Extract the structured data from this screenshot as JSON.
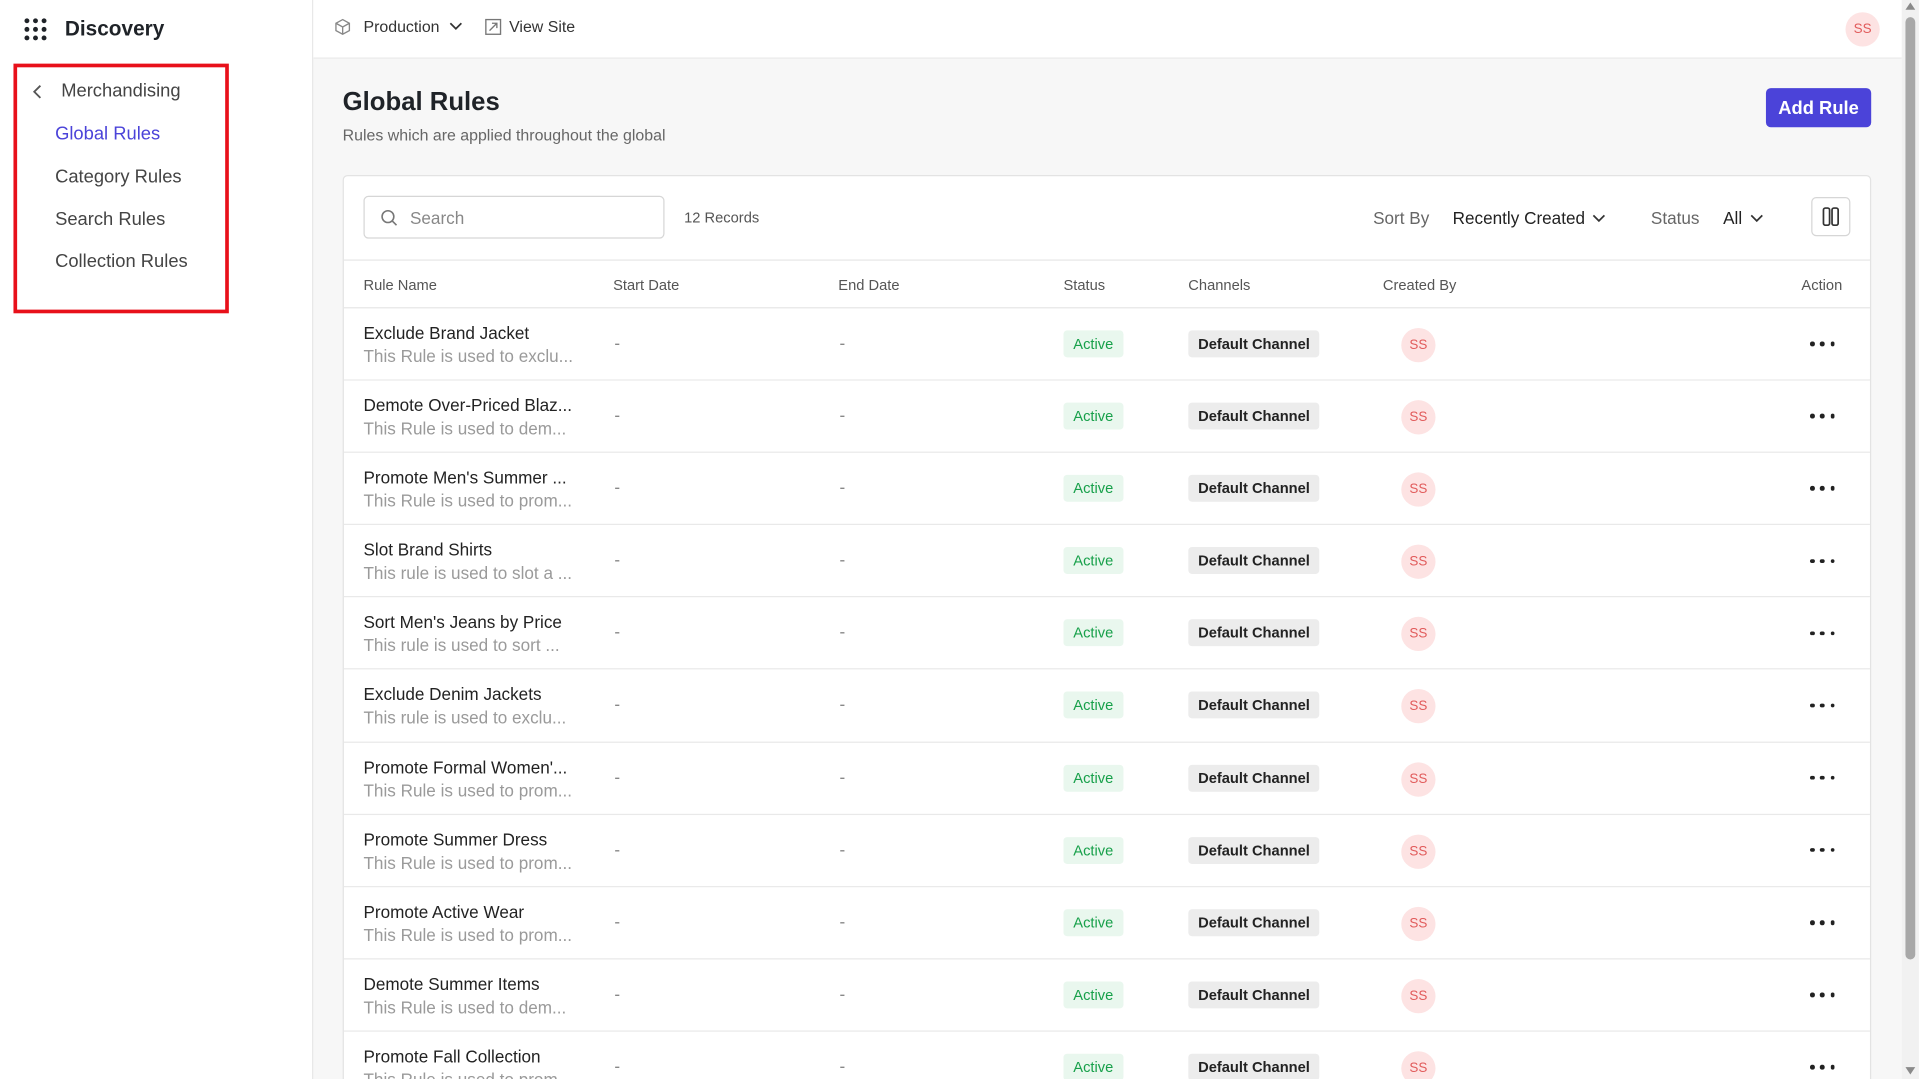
{
  "app": {
    "name": "Discovery"
  },
  "sidebar": {
    "back_label": "Merchandising",
    "items": [
      {
        "label": "Global Rules",
        "active": true
      },
      {
        "label": "Category Rules",
        "active": false
      },
      {
        "label": "Search Rules",
        "active": false
      },
      {
        "label": "Collection Rules",
        "active": false
      }
    ]
  },
  "topbar": {
    "environment": "Production",
    "view_site": "View Site",
    "user_initials": "SS"
  },
  "page": {
    "title": "Global Rules",
    "subtitle": "Rules which are applied throughout the global",
    "add_button": "Add Rule"
  },
  "toolbar": {
    "search_placeholder": "Search",
    "records": "12 Records",
    "sort_label": "Sort By",
    "sort_value": "Recently Created",
    "status_label": "Status",
    "status_value": "All"
  },
  "table": {
    "columns": [
      "Rule Name",
      "Start Date",
      "End Date",
      "Status",
      "Channels",
      "Created By",
      "Action"
    ],
    "rows": [
      {
        "name": "Exclude Brand Jacket",
        "desc": "This Rule is used to exclu...",
        "start": "-",
        "end": "-",
        "status": "Active",
        "channel": "Default Channel",
        "created_by": "SS"
      },
      {
        "name": "Demote Over-Priced Blaz...",
        "desc": "This Rule is used to dem...",
        "start": "-",
        "end": "-",
        "status": "Active",
        "channel": "Default Channel",
        "created_by": "SS"
      },
      {
        "name": "Promote Men's Summer ...",
        "desc": "This Rule is used to prom...",
        "start": "-",
        "end": "-",
        "status": "Active",
        "channel": "Default Channel",
        "created_by": "SS"
      },
      {
        "name": "Slot Brand Shirts",
        "desc": "This rule is used to slot a ...",
        "start": "-",
        "end": "-",
        "status": "Active",
        "channel": "Default Channel",
        "created_by": "SS"
      },
      {
        "name": "Sort Men's Jeans by Price",
        "desc": "This rule is used to sort ...",
        "start": "-",
        "end": "-",
        "status": "Active",
        "channel": "Default Channel",
        "created_by": "SS"
      },
      {
        "name": "Exclude Denim Jackets",
        "desc": "This rule is used to exclu...",
        "start": "-",
        "end": "-",
        "status": "Active",
        "channel": "Default Channel",
        "created_by": "SS"
      },
      {
        "name": "Promote Formal Women'...",
        "desc": "This Rule is used to prom...",
        "start": "-",
        "end": "-",
        "status": "Active",
        "channel": "Default Channel",
        "created_by": "SS"
      },
      {
        "name": "Promote Summer Dress",
        "desc": "This Rule is used to prom...",
        "start": "-",
        "end": "-",
        "status": "Active",
        "channel": "Default Channel",
        "created_by": "SS"
      },
      {
        "name": "Promote Active Wear",
        "desc": "This Rule is used to prom...",
        "start": "-",
        "end": "-",
        "status": "Active",
        "channel": "Default Channel",
        "created_by": "SS"
      },
      {
        "name": "Demote Summer Items",
        "desc": "This Rule is used to dem...",
        "start": "-",
        "end": "-",
        "status": "Active",
        "channel": "Default Channel",
        "created_by": "SS"
      },
      {
        "name": "Promote Fall Collection",
        "desc": "This Rule is used to prom...",
        "start": "-",
        "end": "-",
        "status": "Active",
        "channel": "Default Channel",
        "created_by": "SS"
      }
    ]
  },
  "colors": {
    "accent": "#4b43d9",
    "highlight_border": "#e8101a",
    "active_text": "#17a04a",
    "active_bg": "#e9f7ee",
    "avatar_bg": "#fde3e3",
    "avatar_text": "#e15b5b"
  },
  "icons": [
    "apps-grid-icon",
    "chevron-left-icon",
    "cube-icon",
    "chevron-down-icon",
    "external-link-icon",
    "search-icon",
    "columns-icon",
    "more-horizontal-icon"
  ]
}
